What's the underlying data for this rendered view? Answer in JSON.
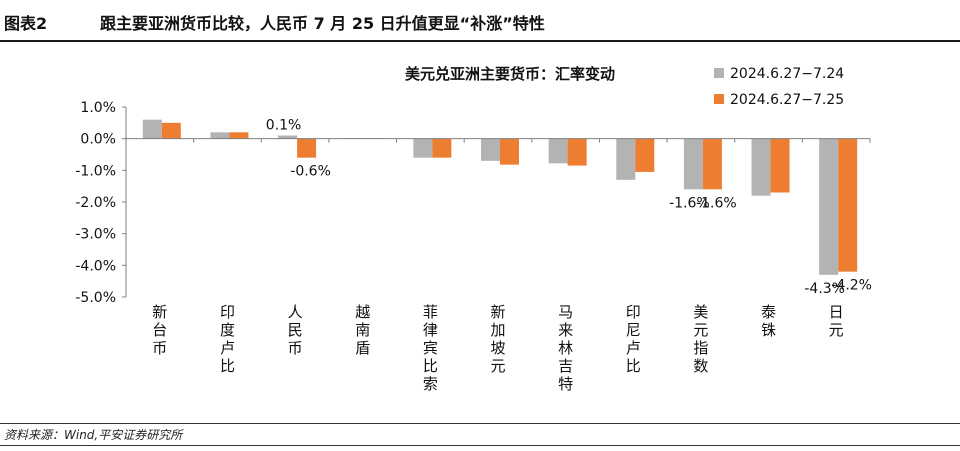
{
  "header": {
    "figure_no": "图表2",
    "title": "跟主要亚洲货币比较，人民币 7 月 25 日升值更显“补涨”特性"
  },
  "footer": {
    "source": "资料来源：Wind,平安证券研究所"
  },
  "colors": {
    "series_1": "#b3b3b3",
    "series_2": "#ed7d31",
    "axis": "#7f7f7f"
  },
  "chart_data": {
    "type": "bar",
    "title": "美元兑亚洲主要货币：汇率变动",
    "categories": [
      "新台币",
      "印度卢比",
      "人民币",
      "越南盾",
      "菲律宾比索",
      "新加坡元",
      "马来林吉特",
      "印尼卢比",
      "美元指数",
      "泰铢",
      "日元"
    ],
    "series": [
      {
        "name": "2024.6.27−7.24",
        "values": [
          0.6,
          0.2,
          0.1,
          0.02,
          -0.6,
          -0.7,
          -0.78,
          -1.3,
          -1.6,
          -1.8,
          -4.3
        ]
      },
      {
        "name": "2024.6.27−7.25",
        "values": [
          0.5,
          0.2,
          -0.6,
          0.02,
          -0.6,
          -0.82,
          -0.85,
          -1.05,
          -1.6,
          -1.7,
          -4.2
        ]
      }
    ],
    "data_labels": [
      {
        "series": 0,
        "category": "人民币",
        "text": "0.1%"
      },
      {
        "series": 1,
        "category": "人民币",
        "text": "-0.6%"
      },
      {
        "series": 0,
        "category": "美元指数",
        "text": "-1.6%"
      },
      {
        "series": 1,
        "category": "美元指数",
        "text": "-1.6%"
      },
      {
        "series": 0,
        "category": "日元",
        "text": "-4.3%"
      },
      {
        "series": 1,
        "category": "日元",
        "text": "-4.2%"
      }
    ],
    "y_ticks": [
      "1.0%",
      "0.0%",
      "-1.0%",
      "-2.0%",
      "-3.0%",
      "-4.0%",
      "-5.0%"
    ],
    "ylim": [
      -5.0,
      1.0
    ],
    "legend_position": "top-right",
    "grid": false
  }
}
